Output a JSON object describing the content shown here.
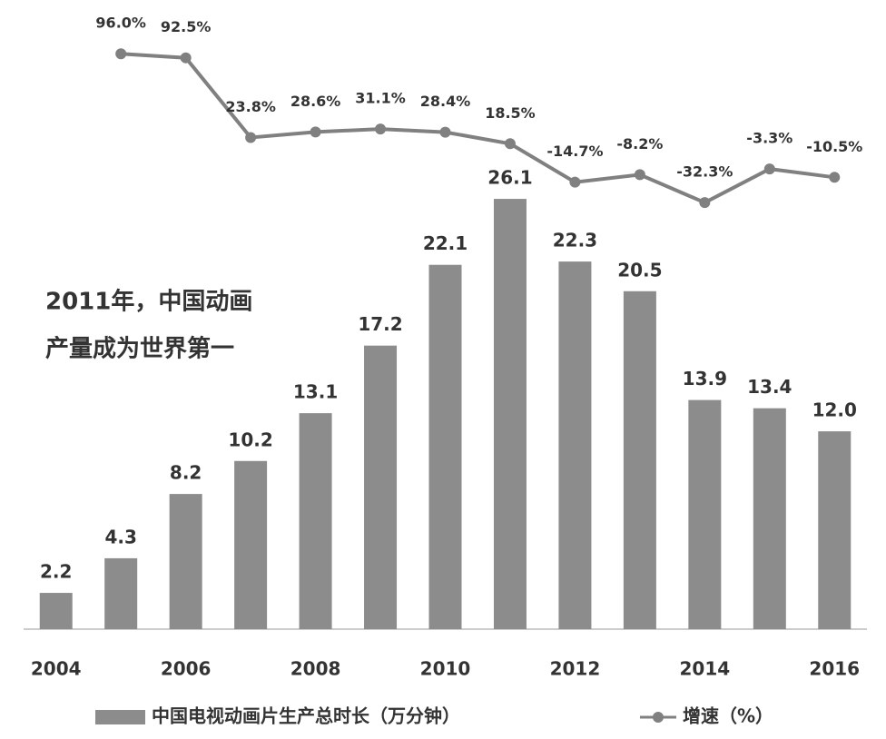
{
  "chart_data": {
    "type": "bar-line",
    "annotation": [
      "2011年，中国动画",
      "产量成为世界第一"
    ],
    "categories": [
      "2004",
      null,
      "2006",
      null,
      "2008",
      null,
      "2010",
      null,
      "2012",
      null,
      "2014",
      null,
      "2016"
    ],
    "series": [
      {
        "name": "中国电视动画片生产总时长（万分钟）",
        "type": "bar",
        "color": "#8c8c8c",
        "values": [
          2.2,
          4.3,
          8.2,
          10.2,
          13.1,
          17.2,
          22.1,
          26.1,
          22.3,
          20.5,
          13.9,
          13.4,
          12.0
        ],
        "value_labels": [
          "2.2",
          "4.3",
          "8.2",
          "10.2",
          "13.1",
          "17.2",
          "22.1",
          "26.1",
          "22.3",
          "20.5",
          "13.9",
          "13.4",
          "12.0"
        ]
      },
      {
        "name": "增速（%）",
        "type": "line",
        "axis": "y2",
        "color": "#808080",
        "values": [
          null,
          96.0,
          92.5,
          23.8,
          28.6,
          31.1,
          28.4,
          18.5,
          -14.7,
          -8.2,
          -32.3,
          -3.3,
          -10.5
        ],
        "value_labels": [
          null,
          "96.0%",
          "92.5%",
          "23.8%",
          "28.6%",
          "31.1%",
          "28.4%",
          "18.5%",
          "-14.7%",
          "-8.2%",
          "-32.3%",
          "-3.3%",
          "-10.5%"
        ]
      }
    ],
    "ylim": [
      0,
      38
    ],
    "y2lim": [
      -400,
      140
    ],
    "legend": "bottom"
  }
}
